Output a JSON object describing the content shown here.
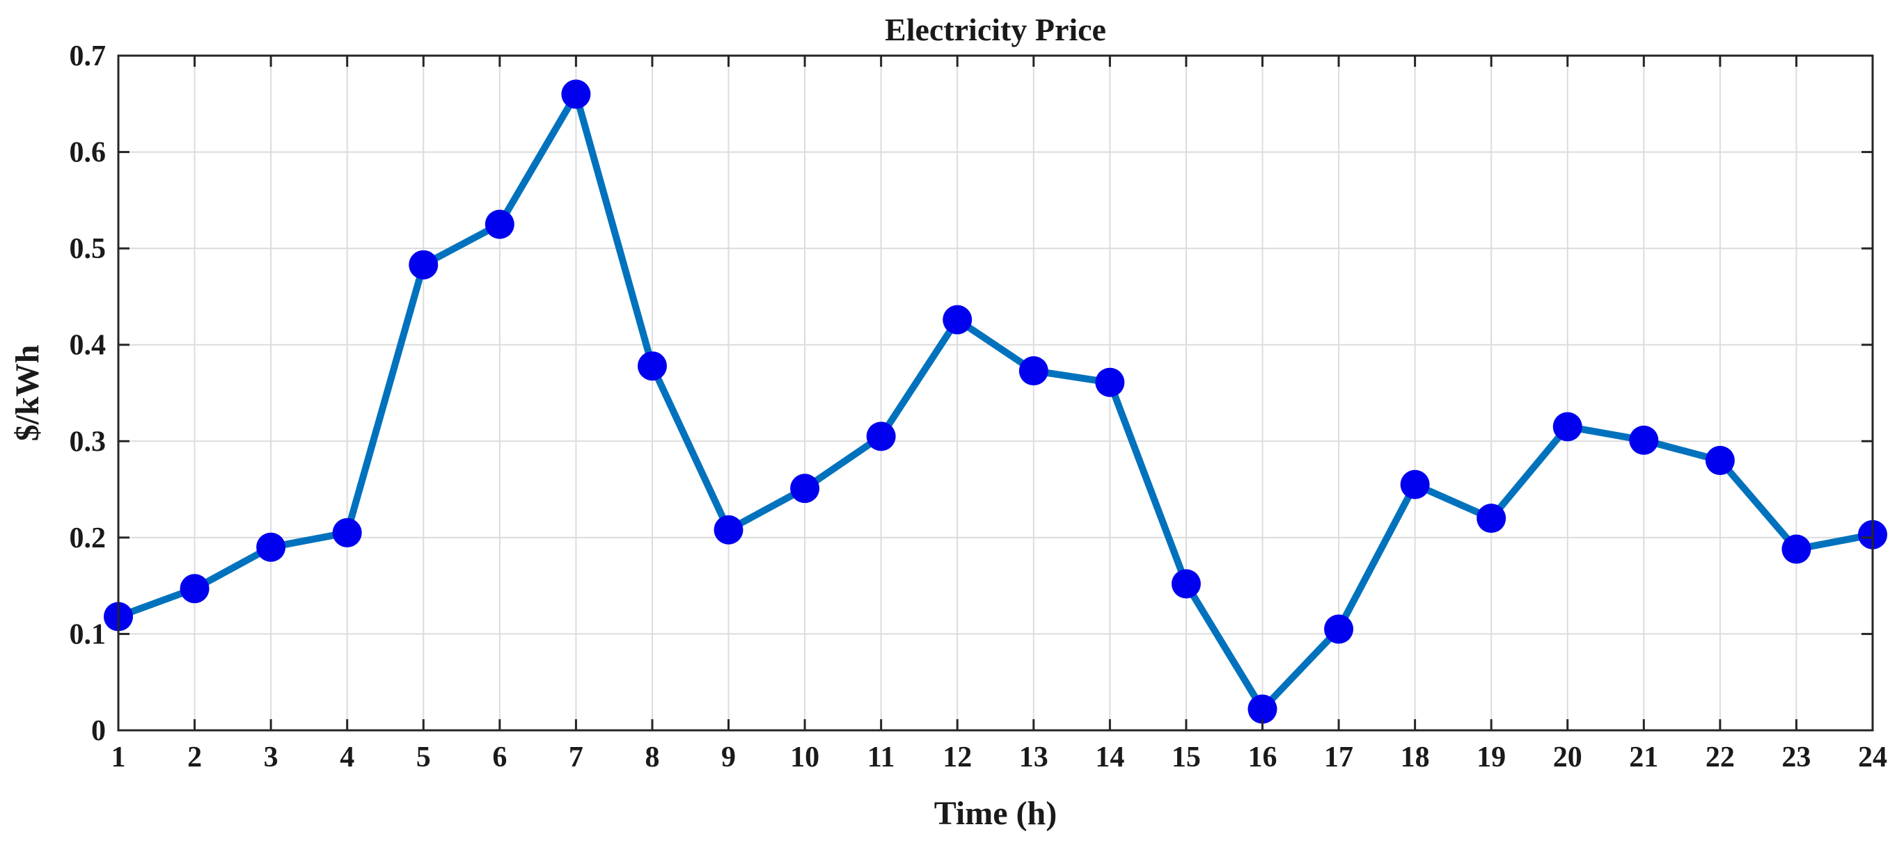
{
  "chart_data": {
    "type": "line",
    "title": "Electricity Price",
    "xlabel": "Time (h)",
    "ylabel": "$/kWh",
    "x": [
      1,
      2,
      3,
      4,
      5,
      6,
      7,
      8,
      9,
      10,
      11,
      12,
      13,
      14,
      15,
      16,
      17,
      18,
      19,
      20,
      21,
      22,
      23,
      24
    ],
    "series": [
      {
        "values": [
          0.118,
          0.147,
          0.19,
          0.205,
          0.483,
          0.525,
          0.66,
          0.378,
          0.208,
          0.251,
          0.305,
          0.426,
          0.373,
          0.361,
          0.152,
          0.022,
          0.105,
          0.255,
          0.22,
          0.315,
          0.301,
          0.28,
          0.188,
          0.203
        ]
      }
    ],
    "xlim": [
      1,
      24
    ],
    "ylim": [
      0,
      0.7
    ],
    "xticks": [
      "1",
      "2",
      "3",
      "4",
      "5",
      "6",
      "7",
      "8",
      "9",
      "10",
      "11",
      "12",
      "13",
      "14",
      "15",
      "16",
      "17",
      "18",
      "19",
      "20",
      "21",
      "22",
      "23",
      "24"
    ],
    "yticks": [
      "0",
      "0.1",
      "0.2",
      "0.3",
      "0.4",
      "0.5",
      "0.6",
      "0.7"
    ],
    "grid": true,
    "line_color": "#0072BD",
    "marker_color": "#0000EE",
    "marker": "circle"
  }
}
